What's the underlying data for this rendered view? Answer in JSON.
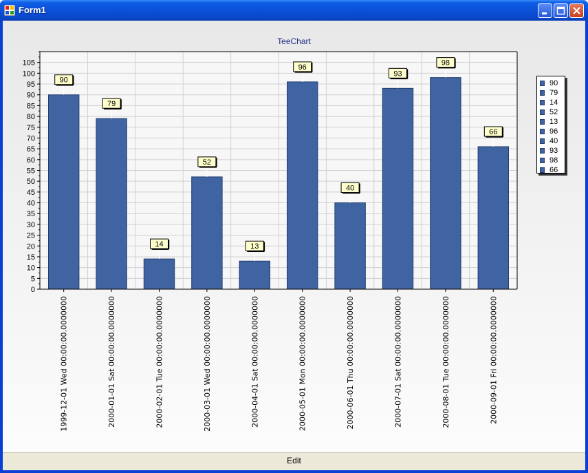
{
  "window": {
    "title": "Form1",
    "icons": {
      "app": "app-icon",
      "minimize": "minimize-icon",
      "maximize": "maximize-icon",
      "close": "close-icon"
    }
  },
  "edit_button": {
    "label": "Edit"
  },
  "colors": {
    "bar": "#4064a1",
    "bar_border": "#223d70",
    "label_bg": "#ffffcc",
    "title": "#1e2a80"
  },
  "chart_data": {
    "type": "bar",
    "title": "TeeChart",
    "xlabel": "",
    "ylabel": "",
    "ylim": [
      0,
      110
    ],
    "y_ticks": [
      0,
      5,
      10,
      15,
      20,
      25,
      30,
      35,
      40,
      45,
      50,
      55,
      60,
      65,
      70,
      75,
      80,
      85,
      90,
      95,
      100,
      105
    ],
    "grid": true,
    "legend_position": "right",
    "categories": [
      "1999-12-01 Wed 00:00:00.0000000",
      "2000-01-01 Sat 00:00:00.0000000",
      "2000-02-01 Tue 00:00:00.0000000",
      "2000-03-01 Wed 00:00:00.0000000",
      "2000-04-01 Sat 00:00:00.0000000",
      "2000-05-01 Mon 00:00:00.0000000",
      "2000-06-01 Thu 00:00:00.0000000",
      "2000-07-01 Sat 00:00:00.0000000",
      "2000-08-01 Tue 00:00:00.0000000",
      "2000-09-01 Fri 00:00:00.0000000"
    ],
    "values": [
      90,
      79,
      14,
      52,
      13,
      96,
      40,
      93,
      98,
      66
    ],
    "legend": [
      "90",
      "79",
      "14",
      "52",
      "13",
      "96",
      "40",
      "93",
      "98",
      "66"
    ]
  }
}
